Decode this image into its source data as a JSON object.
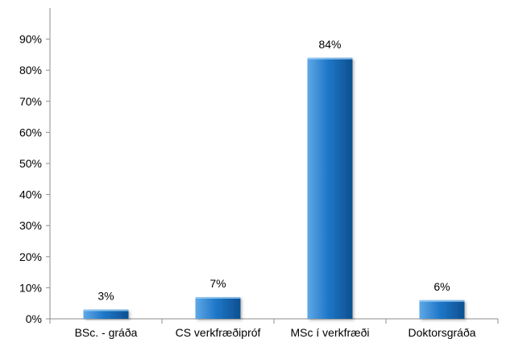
{
  "chart_data": {
    "type": "bar",
    "categories": [
      "BSc. - gráða",
      "CS verkfræðipróf",
      "MSc í verkfræði",
      "Doktorsgráða"
    ],
    "values": [
      3,
      7,
      84,
      6
    ],
    "data_labels": [
      "3%",
      "7%",
      "84%",
      "6%"
    ],
    "y_ticks": [
      "0%",
      "10%",
      "20%",
      "30%",
      "40%",
      "50%",
      "60%",
      "70%",
      "80%",
      "90%"
    ],
    "ylim": [
      0,
      100
    ],
    "grid": false,
    "legend": "none",
    "title": "",
    "xlabel": "",
    "ylabel": ""
  },
  "colors": {
    "bar_light": "#5fa8e6",
    "bar_mid": "#1f78c8",
    "bar_dark": "#0d4f91",
    "axis": "#8c8c8c"
  }
}
